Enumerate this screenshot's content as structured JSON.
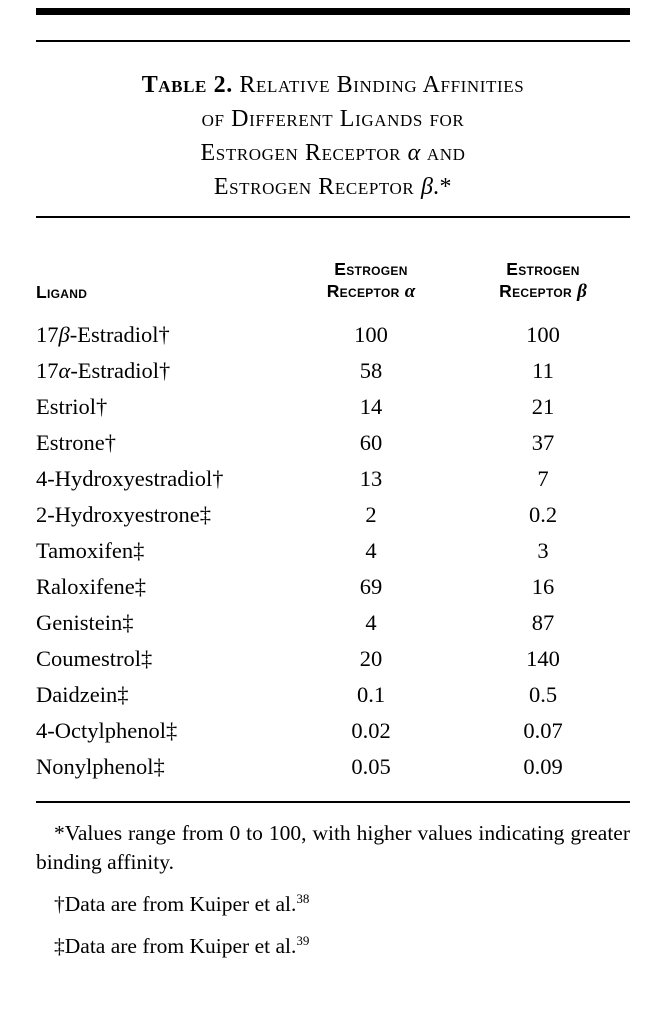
{
  "title": {
    "label": "Table 2.",
    "line1_rest": " Relative Binding Affinities",
    "line2": "of Different Ligands for",
    "line3_pre": "Estrogen Receptor ",
    "alpha": "α",
    "line3_post": " and",
    "line4_pre": "Estrogen Receptor ",
    "beta": "β",
    "line4_post": ".*"
  },
  "table": {
    "columns": {
      "ligand": "Ligand",
      "estrogen": "Estrogen",
      "receptor": "Receptor ",
      "alpha": "α",
      "beta": "β"
    },
    "rows": [
      {
        "ligand": "17β-Estradiol†",
        "alpha": "100",
        "beta": "100"
      },
      {
        "ligand": "17α-Estradiol†",
        "alpha": "58",
        "beta": "11"
      },
      {
        "ligand": "Estriol†",
        "alpha": "14",
        "beta": "21"
      },
      {
        "ligand": "Estrone†",
        "alpha": "60",
        "beta": "37"
      },
      {
        "ligand": "4-Hydroxyestradiol†",
        "alpha": "13",
        "beta": "7"
      },
      {
        "ligand": "2-Hydroxyestrone‡",
        "alpha": "2",
        "beta": "0.2"
      },
      {
        "ligand": "Tamoxifen‡",
        "alpha": "4",
        "beta": "3"
      },
      {
        "ligand": "Raloxifene‡",
        "alpha": "69",
        "beta": "16"
      },
      {
        "ligand": "Genistein‡",
        "alpha": "4",
        "beta": "87"
      },
      {
        "ligand": "Coumestrol‡",
        "alpha": "20",
        "beta": "140"
      },
      {
        "ligand": "Daidzein‡",
        "alpha": "0.1",
        "beta": "0.5"
      },
      {
        "ligand": "4-Octylphenol‡",
        "alpha": "0.02",
        "beta": "0.07"
      },
      {
        "ligand": "Nonylphenol‡",
        "alpha": "0.05",
        "beta": "0.09"
      }
    ]
  },
  "footnotes": {
    "asterisk": "*Values range from 0 to 100, with higher values indicating greater binding affinity.",
    "dagger_text": "†Data are from Kuiper et al.",
    "dagger_ref": "38",
    "ddagger_text": "‡Data are from Kuiper et al.",
    "ddagger_ref": "39"
  }
}
